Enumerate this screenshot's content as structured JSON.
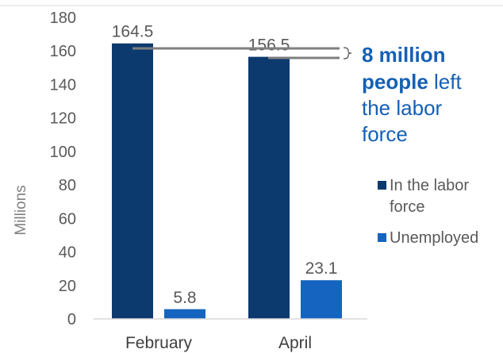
{
  "chart_data": {
    "type": "bar",
    "categories": [
      "February",
      "April"
    ],
    "series": [
      {
        "name": "In the labor force",
        "values": [
          164.5,
          156.5
        ],
        "color": "#0d3a6e",
        "data_labels": [
          "164.5",
          "156.5"
        ]
      },
      {
        "name": "Unemployed",
        "values": [
          5.8,
          23.1
        ],
        "color": "#1565c0",
        "data_labels": [
          "5.8",
          "23.1"
        ]
      }
    ],
    "ylabel": "Millions",
    "ylim": [
      0,
      180
    ],
    "yticks": [
      0,
      20,
      40,
      60,
      80,
      100,
      120,
      140,
      160,
      180
    ],
    "grid": false,
    "legend_position": "right",
    "legend_lines": [
      [
        "In the labor",
        "force"
      ],
      [
        "Unemployed"
      ]
    ],
    "annotation": {
      "bold_1": "8 million",
      "bold_2": "people",
      "rest_2": " left",
      "line_3": "the labor",
      "line_4": "force",
      "color": "#1560b5"
    }
  }
}
